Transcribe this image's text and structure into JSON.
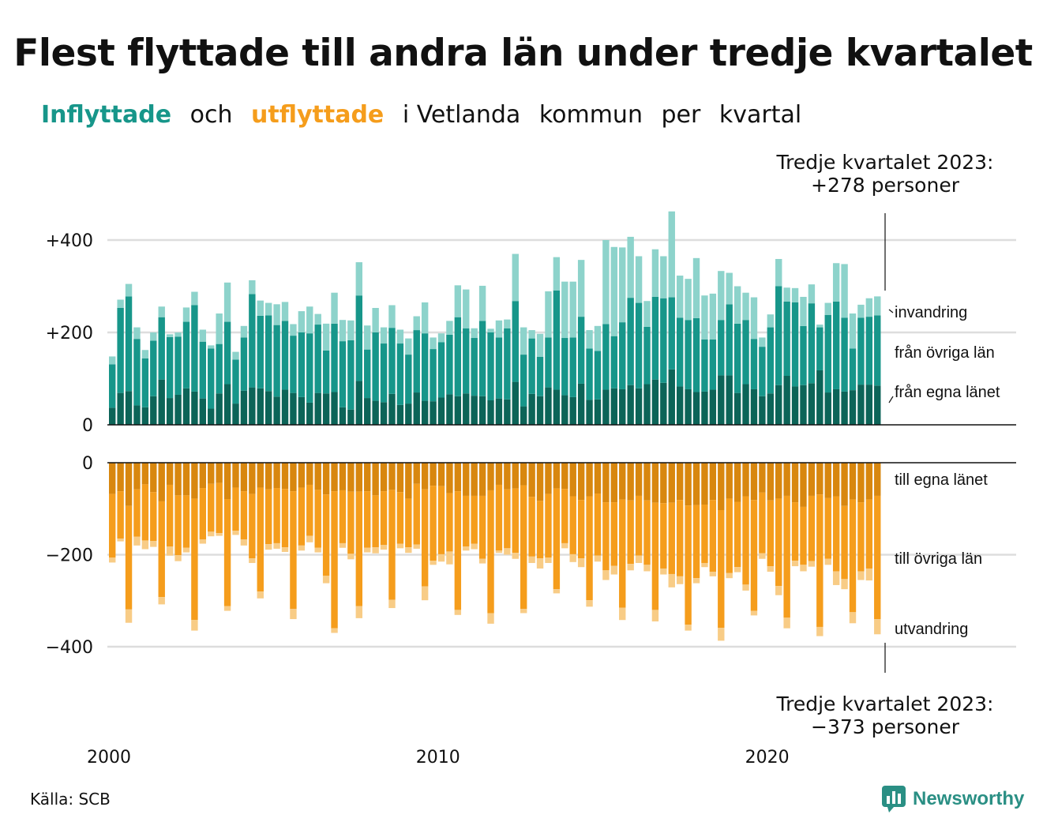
{
  "title": "Flest flyttade till andra län under tredje kvartalet",
  "subtitle": {
    "part1": "Inflyttade",
    "part2": "och",
    "part3": "utflyttade",
    "part4": "i Vetlanda",
    "part5": "kommun",
    "part6": "per",
    "part7": "kvartal"
  },
  "notes": {
    "top_line1": "Tredje kvartalet 2023:",
    "top_line2": "+278 personer",
    "bottom_line1": "Tredje kvartalet 2023:",
    "bottom_line2": "−373 personer"
  },
  "source": "Källa: SCB",
  "brand": {
    "name": "Newsworthy",
    "icon": "newsworthy-chart-icon"
  },
  "colors": {
    "in_egna": "#0c6458",
    "in_ovriga": "#17968a",
    "in_invandring": "#8dd3cb",
    "out_egna": "#d8870f",
    "out_ovriga": "#f59d1c",
    "out_utvandring": "#f8cc86",
    "title_in": "#17968a",
    "title_out": "#f59d1c"
  },
  "chart_data": [
    {
      "type": "bar",
      "stacked": true,
      "name_ref": "inflyttade",
      "x_start": "2000 Q1",
      "x_ticks": [
        {
          "year": 2000,
          "label": "2000"
        },
        {
          "year": 2010,
          "label": "2010"
        },
        {
          "year": 2020,
          "label": "2020"
        }
      ],
      "y_ticks": [
        {
          "value": 0,
          "label": "0"
        },
        {
          "value": 200,
          "label": "+200"
        },
        {
          "value": 400,
          "label": "+400"
        }
      ],
      "ylim": [
        0,
        460
      ],
      "grid": true,
      "series": [
        {
          "name": "från egna länet",
          "values": [
            37,
            69,
            73,
            42,
            38,
            62,
            98,
            58,
            65,
            79,
            72,
            57,
            35,
            68,
            88,
            46,
            74,
            81,
            79,
            73,
            61,
            76,
            69,
            60,
            48,
            69,
            68,
            71,
            38,
            33,
            95,
            58,
            52,
            49,
            67,
            43,
            46,
            70,
            52,
            51,
            59,
            66,
            62,
            68,
            63,
            62,
            53,
            57,
            55,
            93,
            40,
            67,
            62,
            81,
            76,
            64,
            60,
            89,
            54,
            55,
            76,
            79,
            77,
            86,
            79,
            88,
            98,
            91,
            120,
            83,
            77,
            71,
            72,
            76,
            107,
            107,
            69,
            88,
            77,
            62,
            68,
            86,
            106,
            83,
            86,
            90,
            118,
            70,
            77,
            72,
            75,
            87,
            87,
            85
          ]
        },
        {
          "name": "från övriga län",
          "values": [
            94,
            184,
            205,
            144,
            106,
            120,
            135,
            132,
            126,
            144,
            187,
            123,
            130,
            107,
            135,
            95,
            115,
            202,
            157,
            164,
            155,
            149,
            124,
            140,
            150,
            148,
            93,
            148,
            143,
            150,
            185,
            105,
            148,
            127,
            143,
            133,
            106,
            135,
            146,
            113,
            120,
            129,
            171,
            141,
            125,
            163,
            147,
            132,
            154,
            175,
            112,
            120,
            85,
            108,
            215,
            124,
            129,
            145,
            111,
            105,
            142,
            113,
            145,
            189,
            185,
            124,
            179,
            183,
            156,
            149,
            150,
            160,
            113,
            109,
            120,
            154,
            150,
            139,
            109,
            107,
            143,
            214,
            161,
            182,
            128,
            173,
            93,
            168,
            190,
            160,
            90,
            145,
            147,
            152
          ]
        },
        {
          "name": "invandring",
          "values": [
            17,
            18,
            27,
            25,
            18,
            18,
            23,
            6,
            9,
            31,
            29,
            26,
            7,
            66,
            85,
            17,
            25,
            30,
            33,
            27,
            45,
            41,
            25,
            46,
            58,
            23,
            58,
            67,
            46,
            43,
            72,
            52,
            53,
            35,
            49,
            30,
            35,
            30,
            67,
            25,
            19,
            30,
            69,
            84,
            21,
            76,
            8,
            37,
            19,
            102,
            59,
            18,
            50,
            100,
            72,
            122,
            121,
            123,
            40,
            54,
            182,
            193,
            162,
            132,
            101,
            56,
            103,
            91,
            186,
            91,
            89,
            130,
            95,
            99,
            106,
            68,
            81,
            59,
            90,
            20,
            28,
            59,
            30,
            31,
            63,
            41,
            6,
            26,
            83,
            116,
            76,
            28,
            40,
            41
          ]
        }
      ]
    },
    {
      "type": "bar",
      "stacked": true,
      "name_ref": "utflyttade",
      "x_start": "2000 Q1",
      "y_ticks": [
        {
          "value": 0,
          "label": "0"
        },
        {
          "value": -200,
          "label": "−200"
        },
        {
          "value": -400,
          "label": "−400"
        }
      ],
      "ylim": [
        -420,
        0
      ],
      "grid": true,
      "series": [
        {
          "name": "till egna länet",
          "values": [
            -68,
            -62,
            -94,
            -58,
            -47,
            -64,
            -84,
            -48,
            -71,
            -71,
            -78,
            -55,
            -46,
            -44,
            -79,
            -54,
            -62,
            -68,
            -54,
            -58,
            -55,
            -57,
            -62,
            -54,
            -48,
            -59,
            -69,
            -62,
            -60,
            -63,
            -63,
            -62,
            -71,
            -62,
            -59,
            -64,
            -78,
            -46,
            -58,
            -50,
            -51,
            -66,
            -62,
            -72,
            -72,
            -72,
            -60,
            -48,
            -58,
            -56,
            -49,
            -74,
            -83,
            -68,
            -56,
            -57,
            -73,
            -81,
            -73,
            -67,
            -86,
            -86,
            -80,
            -82,
            -72,
            -82,
            -87,
            -88,
            -87,
            -81,
            -93,
            -92,
            -91,
            -81,
            -103,
            -78,
            -85,
            -73,
            -81,
            -65,
            -82,
            -78,
            -72,
            -86,
            -96,
            -72,
            -69,
            -77,
            -73,
            -94,
            -80,
            -86,
            -80,
            -72
          ]
        },
        {
          "name": "till övriga län",
          "values": [
            -138,
            -103,
            -225,
            -103,
            -122,
            -106,
            -208,
            -134,
            -130,
            -114,
            -264,
            -112,
            -104,
            -109,
            -233,
            -94,
            -105,
            -140,
            -226,
            -119,
            -120,
            -127,
            -256,
            -126,
            -111,
            -126,
            -177,
            -298,
            -115,
            -135,
            -249,
            -123,
            -113,
            -117,
            -239,
            -112,
            -106,
            -132,
            -211,
            -163,
            -148,
            -127,
            -258,
            -110,
            -104,
            -137,
            -267,
            -143,
            -128,
            -140,
            -269,
            -130,
            -125,
            -138,
            -219,
            -118,
            -126,
            -127,
            -226,
            -135,
            -148,
            -138,
            -235,
            -138,
            -130,
            -140,
            -233,
            -142,
            -155,
            -166,
            -259,
            -159,
            -127,
            -156,
            -256,
            -162,
            -142,
            -192,
            -241,
            -132,
            -143,
            -190,
            -265,
            -127,
            -126,
            -142,
            -288,
            -132,
            -163,
            -159,
            -245,
            -150,
            -150,
            -268
          ]
        },
        {
          "name": "utvandring",
          "values": [
            -11,
            -6,
            -29,
            -19,
            -19,
            -13,
            -16,
            -20,
            -13,
            -10,
            -23,
            -9,
            -10,
            -6,
            -10,
            -9,
            -13,
            -10,
            -15,
            -12,
            -12,
            -10,
            -22,
            -11,
            -14,
            -10,
            -16,
            -10,
            -10,
            -12,
            -26,
            -10,
            -13,
            -10,
            -18,
            -10,
            -12,
            -9,
            -30,
            -9,
            -16,
            -28,
            -11,
            -9,
            -12,
            -10,
            -23,
            -5,
            -14,
            -13,
            -9,
            -14,
            -22,
            -12,
            -9,
            -11,
            -17,
            -19,
            -14,
            -13,
            -21,
            -19,
            -27,
            -14,
            -16,
            -14,
            -25,
            -13,
            -29,
            -17,
            -13,
            -11,
            -9,
            -10,
            -28,
            -11,
            -11,
            -13,
            -10,
            -12,
            -12,
            -20,
            -23,
            -12,
            -14,
            -12,
            -20,
            -13,
            -30,
            -22,
            -24,
            -19,
            -26,
            -33
          ]
        }
      ]
    }
  ],
  "series_labels": {
    "in_invandring": "invandring",
    "in_ovriga": "från övriga län",
    "in_egna": "från egna länet",
    "out_egna": "till egna länet",
    "out_ovriga": "till övriga län",
    "out_utvandring": "utvandring"
  }
}
